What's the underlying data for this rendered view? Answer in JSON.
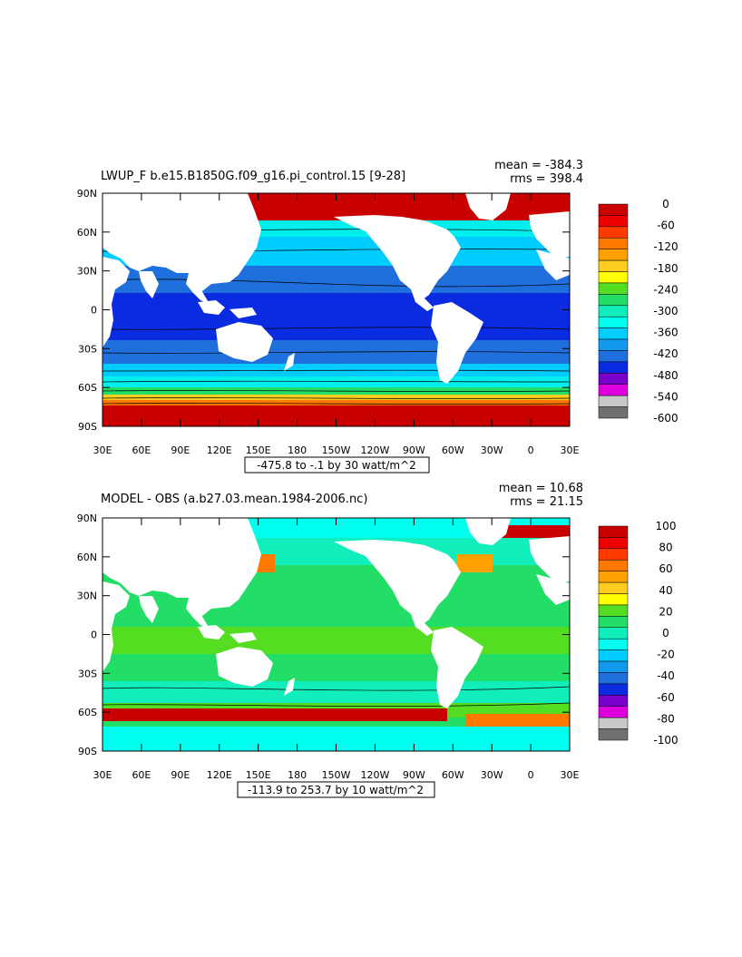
{
  "panels": [
    {
      "title": "LWUP_F b.e15.B1850G.f09_g16.pi_control.15 [9-28]",
      "stats": {
        "mean": "mean = -384.3",
        "rms": "rms = 398.4"
      },
      "range_label": "-475.8 to -.1 by 30 watt/m^2",
      "colorbar": {
        "labels": [
          "0",
          "-60",
          "-120",
          "-180",
          "-240",
          "-300",
          "-360",
          "-420",
          "-480",
          "-540",
          "-600"
        ],
        "colors": [
          "#c80000",
          "#ee0000",
          "#ff3a00",
          "#ff7800",
          "#ffa200",
          "#ffcc22",
          "#ffff00",
          "#55dd22",
          "#22dd66",
          "#11eebb",
          "#00ffee",
          "#00ccff",
          "#1199ee",
          "#1f6fdd",
          "#0a2be0",
          "#7a00cc",
          "#dd00dd",
          "#c8c8c8",
          "#707070"
        ]
      }
    },
    {
      "title": "MODEL - OBS (a.b27.03.mean.1984-2006.nc)",
      "stats": {
        "mean": "mean = 10.68",
        "rms": "rms = 21.15"
      },
      "range_label": "-113.9 to 253.7 by 10 watt/m^2",
      "colorbar": {
        "labels": [
          "100",
          "80",
          "60",
          "40",
          "20",
          "0",
          "-20",
          "-40",
          "-60",
          "-80",
          "-100"
        ],
        "colors": [
          "#c80000",
          "#ee0000",
          "#ff3a00",
          "#ff7800",
          "#ffa200",
          "#ffcc22",
          "#ffff00",
          "#55dd22",
          "#22dd66",
          "#11eebb",
          "#00ffee",
          "#00ccff",
          "#1199ee",
          "#1f6fdd",
          "#0a2be0",
          "#7a00cc",
          "#dd00dd",
          "#c8c8c8",
          "#707070"
        ]
      }
    }
  ],
  "axes": {
    "lat_labels": [
      "90N",
      "60N",
      "30N",
      "0",
      "30S",
      "60S",
      "90S"
    ],
    "lon_labels": [
      "30E",
      "60E",
      "90E",
      "120E",
      "150E",
      "180",
      "150W",
      "120W",
      "90W",
      "60W",
      "30W",
      "0",
      "30E"
    ]
  },
  "colors": {
    "land": "#ffffff",
    "frame": "#000000"
  }
}
